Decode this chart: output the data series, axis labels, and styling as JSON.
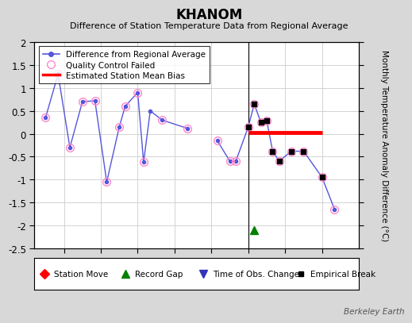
{
  "title": "KHANOM",
  "subtitle": "Difference of Station Temperature Data from Regional Average",
  "ylabel": "Monthly Temperature Anomaly Difference (°C)",
  "xlim": [
    1995.1,
    1999.5
  ],
  "ylim": [
    -2.5,
    2.0
  ],
  "yticks": [
    -2.5,
    -2,
    -1.5,
    -1,
    -0.5,
    0,
    0.5,
    1,
    1.5,
    2
  ],
  "xticks": [
    1995.5,
    1996,
    1996.5,
    1997,
    1997.5,
    1998,
    1998.5,
    1999
  ],
  "background_color": "#d8d8d8",
  "plot_bg_color": "#ffffff",
  "line_color": "#5555dd",
  "segment1": [
    [
      1995.25,
      0.35
    ],
    [
      1995.42,
      1.3
    ],
    [
      1995.58,
      -0.3
    ],
    [
      1995.75,
      0.7
    ],
    [
      1995.92,
      0.72
    ],
    [
      1996.08,
      -1.05
    ],
    [
      1996.25,
      0.15
    ],
    [
      1996.33,
      0.6
    ],
    [
      1996.5,
      0.9
    ],
    [
      1996.58,
      -0.62
    ],
    [
      1996.67,
      0.5
    ],
    [
      1996.83,
      0.3
    ],
    [
      1997.17,
      0.12
    ]
  ],
  "segment2": [
    [
      1997.58,
      -0.15
    ],
    [
      1997.75,
      -0.6
    ],
    [
      1997.83,
      -0.6
    ],
    [
      1998.0,
      0.15
    ],
    [
      1998.08,
      0.65
    ],
    [
      1998.17,
      0.25
    ],
    [
      1998.25,
      0.28
    ],
    [
      1998.33,
      -0.38
    ],
    [
      1998.42,
      -0.6
    ],
    [
      1998.58,
      -0.38
    ],
    [
      1998.75,
      -0.38
    ],
    [
      1999.0,
      -0.95
    ],
    [
      1999.17,
      -1.65
    ]
  ],
  "qc_failed_points": [
    [
      1995.25,
      0.35
    ],
    [
      1995.42,
      1.3
    ],
    [
      1995.58,
      -0.3
    ],
    [
      1995.75,
      0.7
    ],
    [
      1995.92,
      0.72
    ],
    [
      1996.08,
      -1.05
    ],
    [
      1996.25,
      0.15
    ],
    [
      1996.33,
      0.6
    ],
    [
      1996.5,
      0.9
    ],
    [
      1996.58,
      -0.62
    ],
    [
      1996.83,
      0.3
    ],
    [
      1997.17,
      0.12
    ],
    [
      1997.58,
      -0.15
    ],
    [
      1997.75,
      -0.6
    ],
    [
      1997.83,
      -0.6
    ],
    [
      1998.0,
      0.15
    ],
    [
      1998.08,
      0.65
    ],
    [
      1998.17,
      0.25
    ],
    [
      1998.25,
      0.28
    ],
    [
      1998.33,
      -0.38
    ],
    [
      1998.42,
      -0.6
    ],
    [
      1998.58,
      -0.38
    ],
    [
      1998.75,
      -0.38
    ],
    [
      1999.0,
      -0.95
    ],
    [
      1999.17,
      -1.65
    ]
  ],
  "empirical_break_points": [
    [
      1998.0,
      0.15
    ],
    [
      1998.08,
      0.65
    ],
    [
      1998.17,
      0.25
    ],
    [
      1998.25,
      0.28
    ],
    [
      1998.33,
      -0.38
    ],
    [
      1998.42,
      -0.6
    ],
    [
      1998.58,
      -0.38
    ],
    [
      1998.75,
      -0.38
    ],
    [
      1999.0,
      -0.95
    ]
  ],
  "bias_line": [
    [
      1998.0,
      0.02
    ],
    [
      1999.0,
      0.02
    ]
  ],
  "vertical_line_x": 1998.0,
  "record_gap_x": 1998.08,
  "record_gap_y": -2.1,
  "grid_color": "#cccccc",
  "watermark": "Berkeley Earth"
}
